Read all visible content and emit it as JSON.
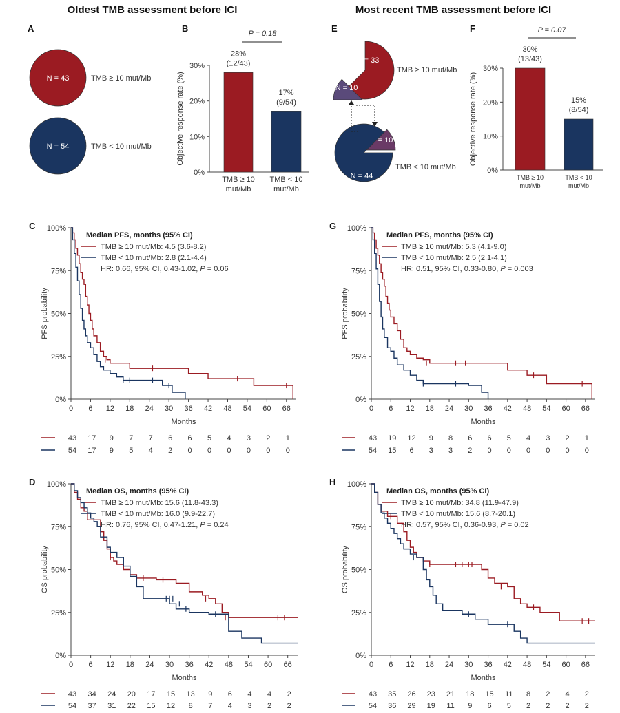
{
  "titles": {
    "left": "Oldest TMB assessment before ICI",
    "right": "Most recent TMB assessment before ICI"
  },
  "colors": {
    "high": "#9b1b22",
    "low": "#1a3560",
    "mixed": "#5a3f73"
  },
  "panel_letters": {
    "A": "A",
    "B": "B",
    "C": "C",
    "D": "D",
    "E": "E",
    "F": "F",
    "G": "G",
    "H": "H"
  },
  "panel_a": {
    "high": {
      "n_label": "N = 43",
      "label": "TMB ≥ 10 mut/Mb"
    },
    "low": {
      "n_label": "N = 54",
      "label": "TMB < 10 mut/Mb"
    }
  },
  "panel_e": {
    "high": {
      "n_label": "N = 33",
      "label": "TMB ≥ 10 mut/Mb"
    },
    "low": {
      "n_label": "N = 44",
      "label": "TMB < 10 mut/Mb"
    },
    "moved_up_label": "N = 10",
    "moved_down_label": "N = 10"
  },
  "chart_data": [
    {
      "id": "B",
      "type": "bar",
      "categories": [
        "TMB ≥ 10 mut/Mb",
        "TMB < 10 mut/Mb"
      ],
      "category_lines": [
        [
          "TMB ≥ 10",
          "mut/Mb"
        ],
        [
          "TMB < 10",
          "mut/Mb"
        ]
      ],
      "values": [
        28,
        17
      ],
      "bar_labels": [
        [
          "28%",
          "(12/43)"
        ],
        [
          "17%",
          "(9/54)"
        ]
      ],
      "ylabel": "Objective response rate (%)",
      "ylim": [
        0,
        30
      ],
      "yticks": [
        0,
        10,
        20,
        30
      ],
      "ytick_labels": [
        "0%",
        "10%",
        "20%",
        "30%"
      ],
      "pvalue": "P = 0.18"
    },
    {
      "id": "F",
      "type": "bar",
      "categories": [
        "TMB ≥ 10 mut/Mb",
        "TMB < 10 mut/Mb"
      ],
      "category_lines": [
        [
          "TMB ≥ 10",
          "mut/Mb"
        ],
        [
          "TMB < 10",
          "mut/Mb"
        ]
      ],
      "values": [
        30,
        15
      ],
      "bar_labels": [
        [
          "30%",
          "(13/43)"
        ],
        [
          "15%",
          "(8/54)"
        ]
      ],
      "ylabel": "Objective response rate (%)",
      "ylim": [
        0,
        30
      ],
      "yticks": [
        0,
        10,
        20,
        30
      ],
      "ytick_labels": [
        "0%",
        "10%",
        "20%",
        "30%"
      ],
      "pvalue": "P = 0.07"
    },
    {
      "id": "C",
      "type": "line",
      "xlabel": "Months",
      "ylabel": "PFS probability",
      "xlim": [
        0,
        69
      ],
      "xticks": [
        0,
        6,
        12,
        18,
        24,
        30,
        36,
        42,
        48,
        54,
        60,
        66
      ],
      "ylim": [
        0,
        100
      ],
      "yticks": [
        0,
        25,
        50,
        75,
        100
      ],
      "ytick_labels": [
        "0%",
        "25%",
        "50%",
        "75%",
        "100%"
      ],
      "legend_title": "Median PFS, months (95% CI)",
      "legend_entries": [
        "TMB ≥ 10 mut/Mb: 4.5 (3.6-8.2)",
        "TMB < 10 mut/Mb: 2.8 (2.1-4.4)"
      ],
      "hr_text": "HR: 0.66, 95% CI, 0.43-1.02, P = 0.06",
      "risk_table": [
        [
          "43",
          "17",
          "9",
          "7",
          "7",
          "6",
          "6",
          "5",
          "4",
          "3",
          "2",
          "1"
        ],
        [
          "54",
          "17",
          "9",
          "5",
          "4",
          "2",
          "0",
          "0",
          "0",
          "0",
          "0",
          "0"
        ]
      ],
      "series": [
        {
          "name": "TMB ≥ 10 mut/Mb",
          "color": "#9b1b22",
          "x": [
            0.5,
            1,
            1.5,
            2,
            2.5,
            3,
            3.5,
            4,
            4.5,
            5,
            5.5,
            6,
            6.5,
            7,
            8,
            9,
            10,
            11,
            12,
            18,
            24,
            30,
            36,
            42,
            48,
            56,
            60,
            68,
            68
          ],
          "y": [
            97,
            93,
            88,
            84,
            79,
            74,
            70,
            67,
            60,
            55,
            50,
            46,
            41,
            37,
            33,
            28,
            25,
            23,
            21,
            18,
            18,
            18,
            15,
            12,
            12,
            8,
            8,
            8,
            0
          ],
          "censor_x": [
            10.5,
            25,
            51,
            66
          ],
          "censor_y": [
            23,
            18,
            12,
            8
          ]
        },
        {
          "name": "TMB < 10 mut/Mb",
          "color": "#1a3560",
          "x": [
            0.5,
            1,
            1.5,
            2,
            2.5,
            3,
            3.5,
            4,
            4.5,
            5,
            6,
            7,
            8,
            9,
            10,
            12,
            14,
            16,
            24,
            28,
            31,
            34,
            35
          ],
          "y": [
            93,
            85,
            77,
            69,
            61,
            53,
            46,
            41,
            37,
            33,
            30,
            26,
            22,
            19,
            17,
            15,
            13,
            11,
            11,
            8,
            4,
            4,
            0
          ],
          "censor_x": [
            16,
            18,
            25,
            30
          ],
          "censor_y": [
            11,
            11,
            11,
            8
          ]
        }
      ]
    },
    {
      "id": "D",
      "type": "line",
      "xlabel": "Months",
      "ylabel": "OS probability",
      "xlim": [
        0,
        69
      ],
      "xticks": [
        0,
        6,
        12,
        18,
        24,
        30,
        36,
        42,
        48,
        54,
        60,
        66
      ],
      "ylim": [
        0,
        100
      ],
      "yticks": [
        0,
        25,
        50,
        75,
        100
      ],
      "ytick_labels": [
        "0%",
        "25%",
        "50%",
        "75%",
        "100%"
      ],
      "legend_title": "Median OS, months (95% CI)",
      "legend_entries": [
        "TMB ≥ 10 mut/Mb: 15.6 (11.8-43.3)",
        "TMB < 10 mut/Mb: 16.0 (9.9-22.7)"
      ],
      "hr_text": "HR: 0.76, 95% CI, 0.47-1.21, P = 0.24",
      "risk_table": [
        [
          "43",
          "34",
          "24",
          "20",
          "17",
          "15",
          "13",
          "9",
          "6",
          "4",
          "4",
          "2"
        ],
        [
          "54",
          "37",
          "31",
          "22",
          "15",
          "12",
          "8",
          "7",
          "4",
          "3",
          "2",
          "2"
        ]
      ],
      "series": [
        {
          "name": "TMB ≥ 10 mut/Mb",
          "color": "#9b1b22",
          "x": [
            1,
            2,
            3,
            4,
            5,
            9,
            10,
            11,
            12,
            13,
            14,
            16,
            18,
            20,
            26,
            32,
            36,
            40,
            42,
            44,
            46,
            48,
            69
          ],
          "y": [
            95,
            91,
            86,
            84,
            79,
            72,
            67,
            62,
            57,
            55,
            53,
            50,
            47,
            45,
            44,
            42,
            37,
            35,
            33,
            30,
            25,
            22,
            22
          ],
          "censor_x": [
            12,
            22,
            28,
            41,
            47,
            63,
            65
          ],
          "censor_y": [
            57,
            45,
            44,
            33,
            22,
            22,
            22
          ]
        },
        {
          "name": "TMB < 10 mut/Mb",
          "color": "#1a3560",
          "x": [
            1,
            2,
            3,
            4,
            5,
            6,
            7,
            8,
            9,
            11,
            12,
            14,
            16,
            18,
            20,
            22,
            30,
            32,
            36,
            42,
            48,
            52,
            58,
            69
          ],
          "y": [
            96,
            92,
            89,
            86,
            83,
            80,
            78,
            75,
            69,
            63,
            60,
            57,
            52,
            46,
            40,
            33,
            30,
            27,
            25,
            24,
            14,
            10,
            7,
            7
          ],
          "censor_x": [
            29,
            30,
            31,
            33,
            35,
            44
          ],
          "censor_y": [
            33,
            33,
            33,
            30,
            27,
            24
          ]
        }
      ]
    },
    {
      "id": "G",
      "type": "line",
      "xlabel": "Months",
      "ylabel": "PFS probability",
      "xlim": [
        0,
        69
      ],
      "xticks": [
        0,
        6,
        12,
        18,
        24,
        30,
        36,
        42,
        48,
        54,
        60,
        66
      ],
      "ylim": [
        0,
        100
      ],
      "yticks": [
        0,
        25,
        50,
        75,
        100
      ],
      "ytick_labels": [
        "0%",
        "25%",
        "50%",
        "75%",
        "100%"
      ],
      "legend_title": "Median PFS, months (95% CI)",
      "legend_entries": [
        "TMB ≥ 10 mut/Mb: 5.3 (4.1-9.0)",
        "TMB < 10 mut/Mb: 2.5 (2.1-4.1)"
      ],
      "hr_text": "HR: 0.51, 95% CI, 0.33-0.80, P = 0.003",
      "risk_table": [
        [
          "43",
          "19",
          "12",
          "9",
          "8",
          "6",
          "6",
          "5",
          "4",
          "3",
          "2",
          "1"
        ],
        [
          "54",
          "15",
          "6",
          "3",
          "3",
          "2",
          "0",
          "0",
          "0",
          "0",
          "0",
          "0"
        ]
      ],
      "series": [
        {
          "name": "TMB ≥ 10 mut/Mb",
          "color": "#9b1b22",
          "x": [
            0.5,
            1,
            1.5,
            2,
            2.5,
            3,
            3.5,
            4,
            4.5,
            5,
            5.5,
            6,
            7,
            8,
            9,
            10,
            11,
            12,
            14,
            16,
            18,
            36,
            42,
            48,
            54,
            68,
            68
          ],
          "y": [
            97,
            93,
            88,
            84,
            79,
            74,
            70,
            66,
            60,
            56,
            52,
            48,
            44,
            40,
            35,
            30,
            28,
            26,
            24,
            23,
            21,
            21,
            17,
            14,
            9,
            9,
            0
          ],
          "censor_x": [
            17,
            26,
            29,
            50,
            65
          ],
          "censor_y": [
            21,
            21,
            21,
            14,
            9
          ]
        },
        {
          "name": "TMB < 10 mut/Mb",
          "color": "#1a3560",
          "x": [
            0.5,
            1,
            1.5,
            2,
            2.5,
            3,
            3.5,
            4,
            5,
            6,
            7,
            8,
            10,
            12,
            14,
            16,
            30,
            34,
            36
          ],
          "y": [
            93,
            85,
            76,
            67,
            57,
            48,
            41,
            36,
            30,
            28,
            24,
            20,
            17,
            14,
            11,
            9,
            8,
            4,
            0
          ],
          "censor_x": [
            16,
            26
          ],
          "censor_y": [
            9,
            9
          ]
        }
      ]
    },
    {
      "id": "H",
      "type": "line",
      "xlabel": "Months",
      "ylabel": "OS probability",
      "xlim": [
        0,
        69
      ],
      "xticks": [
        0,
        6,
        12,
        18,
        24,
        30,
        36,
        42,
        48,
        54,
        60,
        66
      ],
      "ylim": [
        0,
        100
      ],
      "yticks": [
        0,
        25,
        50,
        75,
        100
      ],
      "ytick_labels": [
        "0%",
        "25%",
        "50%",
        "75%",
        "100%"
      ],
      "legend_title": "Median OS, months (95% CI)",
      "legend_entries": [
        "TMB ≥ 10 mut/Mb: 34.8 (11.9-47.9)",
        "TMB < 10 mut/Mb: 15.6 (8.7-20.1)"
      ],
      "hr_text": "HR: 0.57, 95% CI, 0.36-0.93, P = 0.02",
      "risk_table": [
        [
          "43",
          "35",
          "26",
          "23",
          "21",
          "18",
          "15",
          "11",
          "8",
          "2",
          "4",
          "2"
        ],
        [
          "54",
          "36",
          "29",
          "19",
          "11",
          "9",
          "6",
          "5",
          "2",
          "2",
          "2",
          "2"
        ]
      ],
      "series": [
        {
          "name": "TMB ≥ 10 mut/Mb",
          "color": "#9b1b22",
          "x": [
            1,
            2,
            3,
            5,
            8,
            10,
            11,
            12,
            13,
            14,
            16,
            18,
            32,
            34,
            36,
            38,
            42,
            44,
            46,
            48,
            52,
            58,
            69
          ],
          "y": [
            95,
            88,
            84,
            81,
            77,
            72,
            67,
            63,
            60,
            57,
            55,
            53,
            53,
            50,
            45,
            42,
            40,
            33,
            30,
            28,
            25,
            20,
            20
          ],
          "censor_x": [
            6,
            18,
            26,
            28,
            30,
            31,
            40,
            50,
            65,
            67
          ],
          "censor_y": [
            81,
            53,
            53,
            53,
            53,
            53,
            40,
            28,
            20,
            20
          ]
        },
        {
          "name": "TMB < 10 mut/Mb",
          "color": "#1a3560",
          "x": [
            1,
            2,
            3,
            4,
            5,
            6,
            7,
            8,
            9,
            10,
            12,
            14,
            16,
            17,
            18,
            19,
            20,
            22,
            28,
            32,
            36,
            44,
            46,
            48,
            69
          ],
          "y": [
            95,
            88,
            83,
            80,
            77,
            74,
            71,
            68,
            65,
            62,
            59,
            57,
            50,
            44,
            40,
            35,
            30,
            26,
            24,
            21,
            18,
            14,
            10,
            7,
            7
          ],
          "censor_x": [
            13,
            30,
            42
          ],
          "censor_y": [
            57,
            24,
            18
          ]
        }
      ]
    }
  ]
}
